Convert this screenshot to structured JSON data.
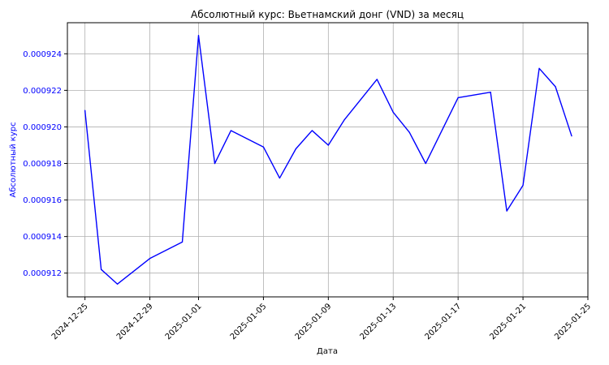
{
  "chart_data": {
    "type": "line",
    "title": "Абсолютный курс: Вьетнамский донг (VND) за месяц",
    "xlabel": "Дата",
    "ylabel": "Абсолютный курс",
    "x_ticks": [
      "2024-12-25",
      "2024-12-29",
      "2025-01-01",
      "2025-01-05",
      "2025-01-09",
      "2025-01-13",
      "2025-01-17",
      "2025-01-21",
      "2025-01-25"
    ],
    "y_ticks": [
      "0.000912",
      "0.000914",
      "0.000916",
      "0.000918",
      "0.000920",
      "0.000922",
      "0.000924"
    ],
    "xlim": [
      "2024-12-23T22:00",
      "2025-01-25T00:00"
    ],
    "ylim": [
      0.0009107,
      0.0009257
    ],
    "grid": true,
    "colors": {
      "line": "#0000ff",
      "ylabel": "#0000ff",
      "yticks": "#0000ff",
      "grid": "#b0b0b0",
      "axes": "#000000"
    },
    "series": [
      {
        "points": [
          [
            "2024-12-25",
            0.0009209
          ],
          [
            "2024-12-26",
            0.0009122
          ],
          [
            "2024-12-27",
            0.0009114
          ],
          [
            "2024-12-29",
            0.0009128
          ],
          [
            "2024-12-31",
            0.0009137
          ],
          [
            "2025-01-01",
            0.000925
          ],
          [
            "2025-01-02",
            0.000918
          ],
          [
            "2025-01-03",
            0.0009198
          ],
          [
            "2025-01-05",
            0.0009189
          ],
          [
            "2025-01-06",
            0.0009172
          ],
          [
            "2025-01-07",
            0.0009188
          ],
          [
            "2025-01-08",
            0.0009198
          ],
          [
            "2025-01-09",
            0.000919
          ],
          [
            "2025-01-10",
            0.0009204
          ],
          [
            "2025-01-12",
            0.0009226
          ],
          [
            "2025-01-13",
            0.0009208
          ],
          [
            "2025-01-14",
            0.0009197
          ],
          [
            "2025-01-15",
            0.000918
          ],
          [
            "2025-01-17",
            0.0009216
          ],
          [
            "2025-01-19",
            0.0009219
          ],
          [
            "2025-01-20",
            0.0009154
          ],
          [
            "2025-01-21",
            0.0009168
          ],
          [
            "2025-01-22",
            0.0009232
          ],
          [
            "2025-01-23",
            0.0009222
          ],
          [
            "2025-01-24",
            0.0009195
          ]
        ]
      }
    ]
  }
}
